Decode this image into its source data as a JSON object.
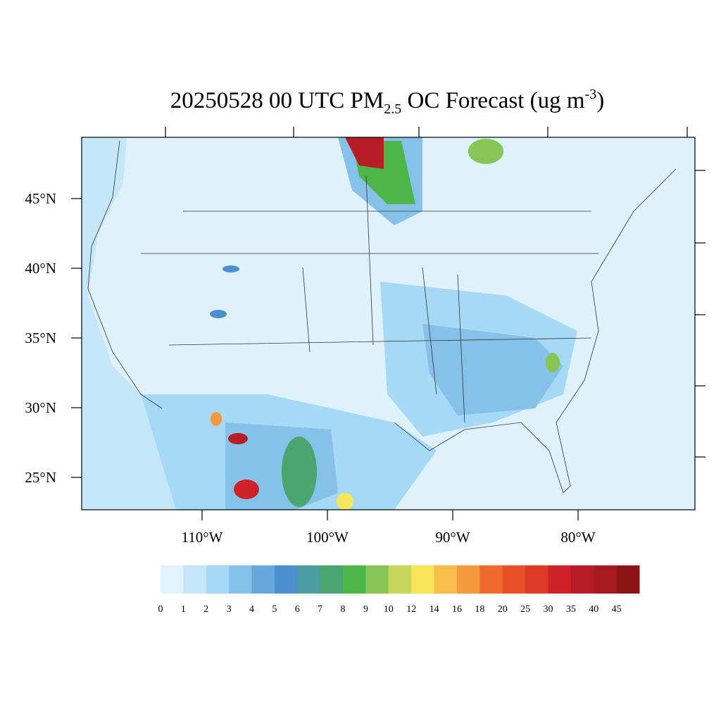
{
  "title": {
    "main": "20250528 00 UTC PM",
    "sub": "2.5",
    "middle": " OC Forecast (ug m",
    "sup": "-3",
    "end": ")"
  },
  "lat_ticks": [
    {
      "value": 45,
      "label": "45°N"
    },
    {
      "value": 40,
      "label": "40°N"
    },
    {
      "value": 35,
      "label": "35°N"
    },
    {
      "value": 30,
      "label": "30°N"
    },
    {
      "value": 25,
      "label": "25°N"
    }
  ],
  "lon_ticks": [
    {
      "value": -110,
      "label": "110°W"
    },
    {
      "value": -100,
      "label": "100°W"
    },
    {
      "value": -90,
      "label": "90°W"
    },
    {
      "value": -80,
      "label": "80°W"
    }
  ],
  "colorbar": {
    "levels": [
      0,
      1,
      2,
      3,
      4,
      5,
      6,
      7,
      8,
      9,
      10,
      12,
      14,
      16,
      18,
      20,
      25,
      30,
      35,
      40,
      45
    ],
    "colors": [
      "#e1f3fb",
      "#c4e6f8",
      "#a5d9f5",
      "#86c1e9",
      "#66a8dc",
      "#4a8fcf",
      "#4a9da0",
      "#4aa56e",
      "#4cb748",
      "#86c556",
      "#c5d65a",
      "#f7e65a",
      "#f8bd4a",
      "#f5993e",
      "#f06a2e",
      "#e85028",
      "#de3a26",
      "#d02028",
      "#b81c26",
      "#a81a22",
      "#8b1414"
    ]
  }
}
